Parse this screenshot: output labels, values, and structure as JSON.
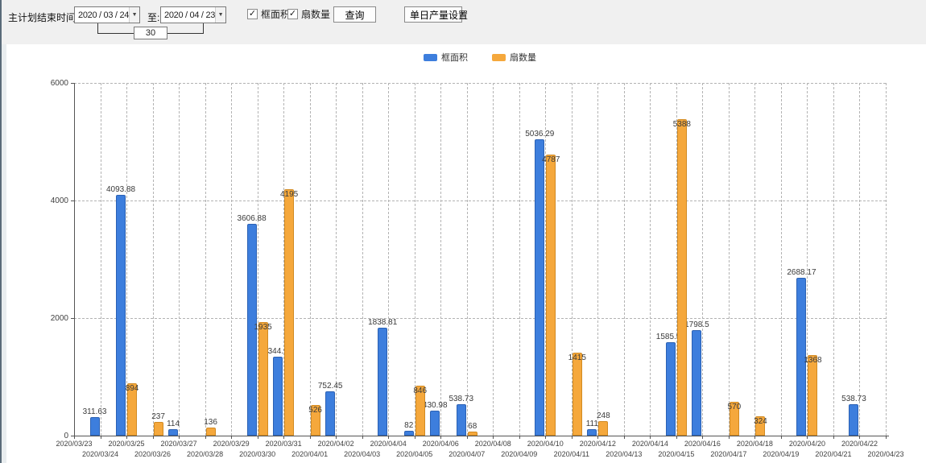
{
  "toolbar": {
    "end_time_label": "主计划结束时间:",
    "date_from": "2020 / 03 / 24",
    "to_label": "至:",
    "date_to": "2020 / 04 / 23",
    "interval_value": "30",
    "area_checkbox_label": "框面积",
    "fan_checkbox_label": "扇数量",
    "area_checked": "✓",
    "fan_checked": "✓",
    "query_button": "查询",
    "daily_output_button": "单日产量设置",
    "dropdown_arrow": "▼"
  },
  "chart_data": {
    "type": "bar",
    "title": "",
    "xlabel": "",
    "ylabel": "",
    "ylim": [
      0,
      6000
    ],
    "yticks": [
      0,
      2000,
      4000,
      6000
    ],
    "grid": true,
    "legend_position": "top",
    "categories": [
      "2020/03/23",
      "2020/03/24",
      "2020/03/25",
      "2020/03/26",
      "2020/03/27",
      "2020/03/28",
      "2020/03/29",
      "2020/03/30",
      "2020/03/31",
      "2020/04/01",
      "2020/04/02",
      "2020/04/03",
      "2020/04/04",
      "2020/04/05",
      "2020/04/06",
      "2020/04/07",
      "2020/04/08",
      "2020/04/09",
      "2020/04/10",
      "2020/04/11",
      "2020/04/12",
      "2020/04/13",
      "2020/04/14",
      "2020/04/15",
      "2020/04/16",
      "2020/04/17",
      "2020/04/18",
      "2020/04/19",
      "2020/04/20",
      "2020/04/21",
      "2020/04/22",
      "2020/04/23"
    ],
    "series": [
      {
        "name": "框面积",
        "color": "#3d7edd",
        "border_color": "#2b61b4",
        "values": [
          null,
          311.63,
          4093.88,
          null,
          114,
          null,
          null,
          3606.88,
          1344.95,
          null,
          752.45,
          null,
          1838.81,
          82,
          430.98,
          538.73,
          null,
          null,
          5036.29,
          null,
          111,
          null,
          null,
          1585.96,
          1798.5,
          null,
          null,
          null,
          2688.17,
          null,
          538.73,
          null
        ]
      },
      {
        "name": "扇数量",
        "color": "#f5a83c",
        "border_color": "#d18a22",
        "values": [
          null,
          null,
          894,
          237,
          null,
          136,
          null,
          1935,
          4195,
          526,
          null,
          null,
          null,
          846,
          null,
          68,
          null,
          null,
          4787,
          1415,
          248,
          null,
          null,
          5388,
          null,
          570,
          324,
          null,
          1368,
          null,
          null,
          null
        ]
      }
    ]
  }
}
